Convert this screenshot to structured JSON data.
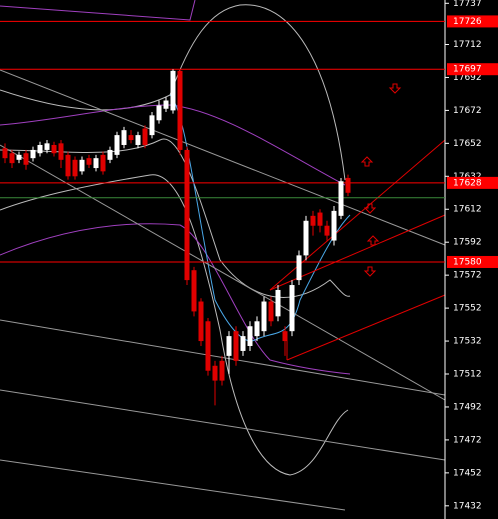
{
  "chart_data": {
    "type": "candlestick",
    "ylim": [
      17424,
      17739
    ],
    "yticks": [
      17737,
      17712,
      17692,
      17672,
      17652,
      17632,
      17612,
      17592,
      17572,
      17552,
      17532,
      17512,
      17492,
      17472,
      17452,
      17432
    ],
    "up_color": "#ffffff",
    "down_color": "#e00000",
    "candles": [
      [
        17649,
        17652,
        17640,
        17643
      ],
      [
        17646,
        17648,
        17637,
        17640
      ],
      [
        17642,
        17647,
        17640,
        17645
      ],
      [
        17646,
        17648,
        17636,
        17639
      ],
      [
        17643,
        17650,
        17641,
        17648
      ],
      [
        17646,
        17653,
        17644,
        17651
      ],
      [
        17648,
        17654,
        17646,
        17652
      ],
      [
        17651,
        17653,
        17644,
        17646
      ],
      [
        17652,
        17654,
        17637,
        17642
      ],
      [
        17645,
        17647,
        17630,
        17632
      ],
      [
        17642,
        17644,
        17630,
        17632
      ],
      [
        17635,
        17644,
        17633,
        17642
      ],
      [
        17643,
        17645,
        17637,
        17639
      ],
      [
        17637,
        17645,
        17635,
        17643
      ],
      [
        17645,
        17647,
        17633,
        17635
      ],
      [
        17642,
        17650,
        17640,
        17648
      ],
      [
        17645,
        17659,
        17643,
        17657
      ],
      [
        17651,
        17662,
        17649,
        17660
      ],
      [
        17657,
        17660,
        17652,
        17654
      ],
      [
        17651,
        17659,
        17649,
        17657
      ],
      [
        17661,
        17663,
        17649,
        17651
      ],
      [
        17657,
        17671,
        17655,
        17669
      ],
      [
        17666,
        17678,
        17664,
        17675
      ],
      [
        17673,
        17680,
        17671,
        17678
      ],
      [
        17672,
        17697,
        17670,
        17696
      ],
      [
        17696,
        17697,
        17645,
        17648
      ],
      [
        17648,
        17650,
        17566,
        17569
      ],
      [
        17575,
        17577,
        17547,
        17550
      ],
      [
        17556,
        17558,
        17529,
        17532
      ],
      [
        17544,
        17546,
        17511,
        17514
      ],
      [
        17517,
        17520,
        17493,
        17508
      ],
      [
        17520,
        17523,
        17505,
        17508
      ],
      [
        17523,
        17538,
        17512,
        17535
      ],
      [
        17538,
        17541,
        17517,
        17520
      ],
      [
        17526,
        17538,
        17523,
        17535
      ],
      [
        17529,
        17544,
        17526,
        17541
      ],
      [
        17535,
        17547,
        17532,
        17544
      ],
      [
        17538,
        17559,
        17535,
        17556
      ],
      [
        17556,
        17559,
        17541,
        17544
      ],
      [
        17547,
        17566,
        17544,
        17563
      ],
      [
        17538,
        17541,
        17523,
        17532
      ],
      [
        17538,
        17569,
        17535,
        17566
      ],
      [
        17569,
        17587,
        17566,
        17584
      ],
      [
        17584,
        17608,
        17581,
        17605
      ],
      [
        17608,
        17611,
        17596,
        17602
      ],
      [
        17610,
        17612,
        17598,
        17602
      ],
      [
        17602,
        17605,
        17593,
        17596
      ],
      [
        17593,
        17614,
        17590,
        17611
      ],
      [
        17608,
        17631,
        17606,
        17629
      ],
      [
        17631,
        17633,
        17620,
        17622
      ]
    ],
    "levels": [
      {
        "value": 17726,
        "label": "17726",
        "color": "#ff0000"
      },
      {
        "value": 17697,
        "label": "17697",
        "color": "#ff0000"
      },
      {
        "value": 17628,
        "label": "17628",
        "color": "#ff0000"
      },
      {
        "value": 17580,
        "label": "17580",
        "color": "#ff0000"
      }
    ],
    "green_line": {
      "value": 17619,
      "color": "#3a8a3a"
    }
  }
}
